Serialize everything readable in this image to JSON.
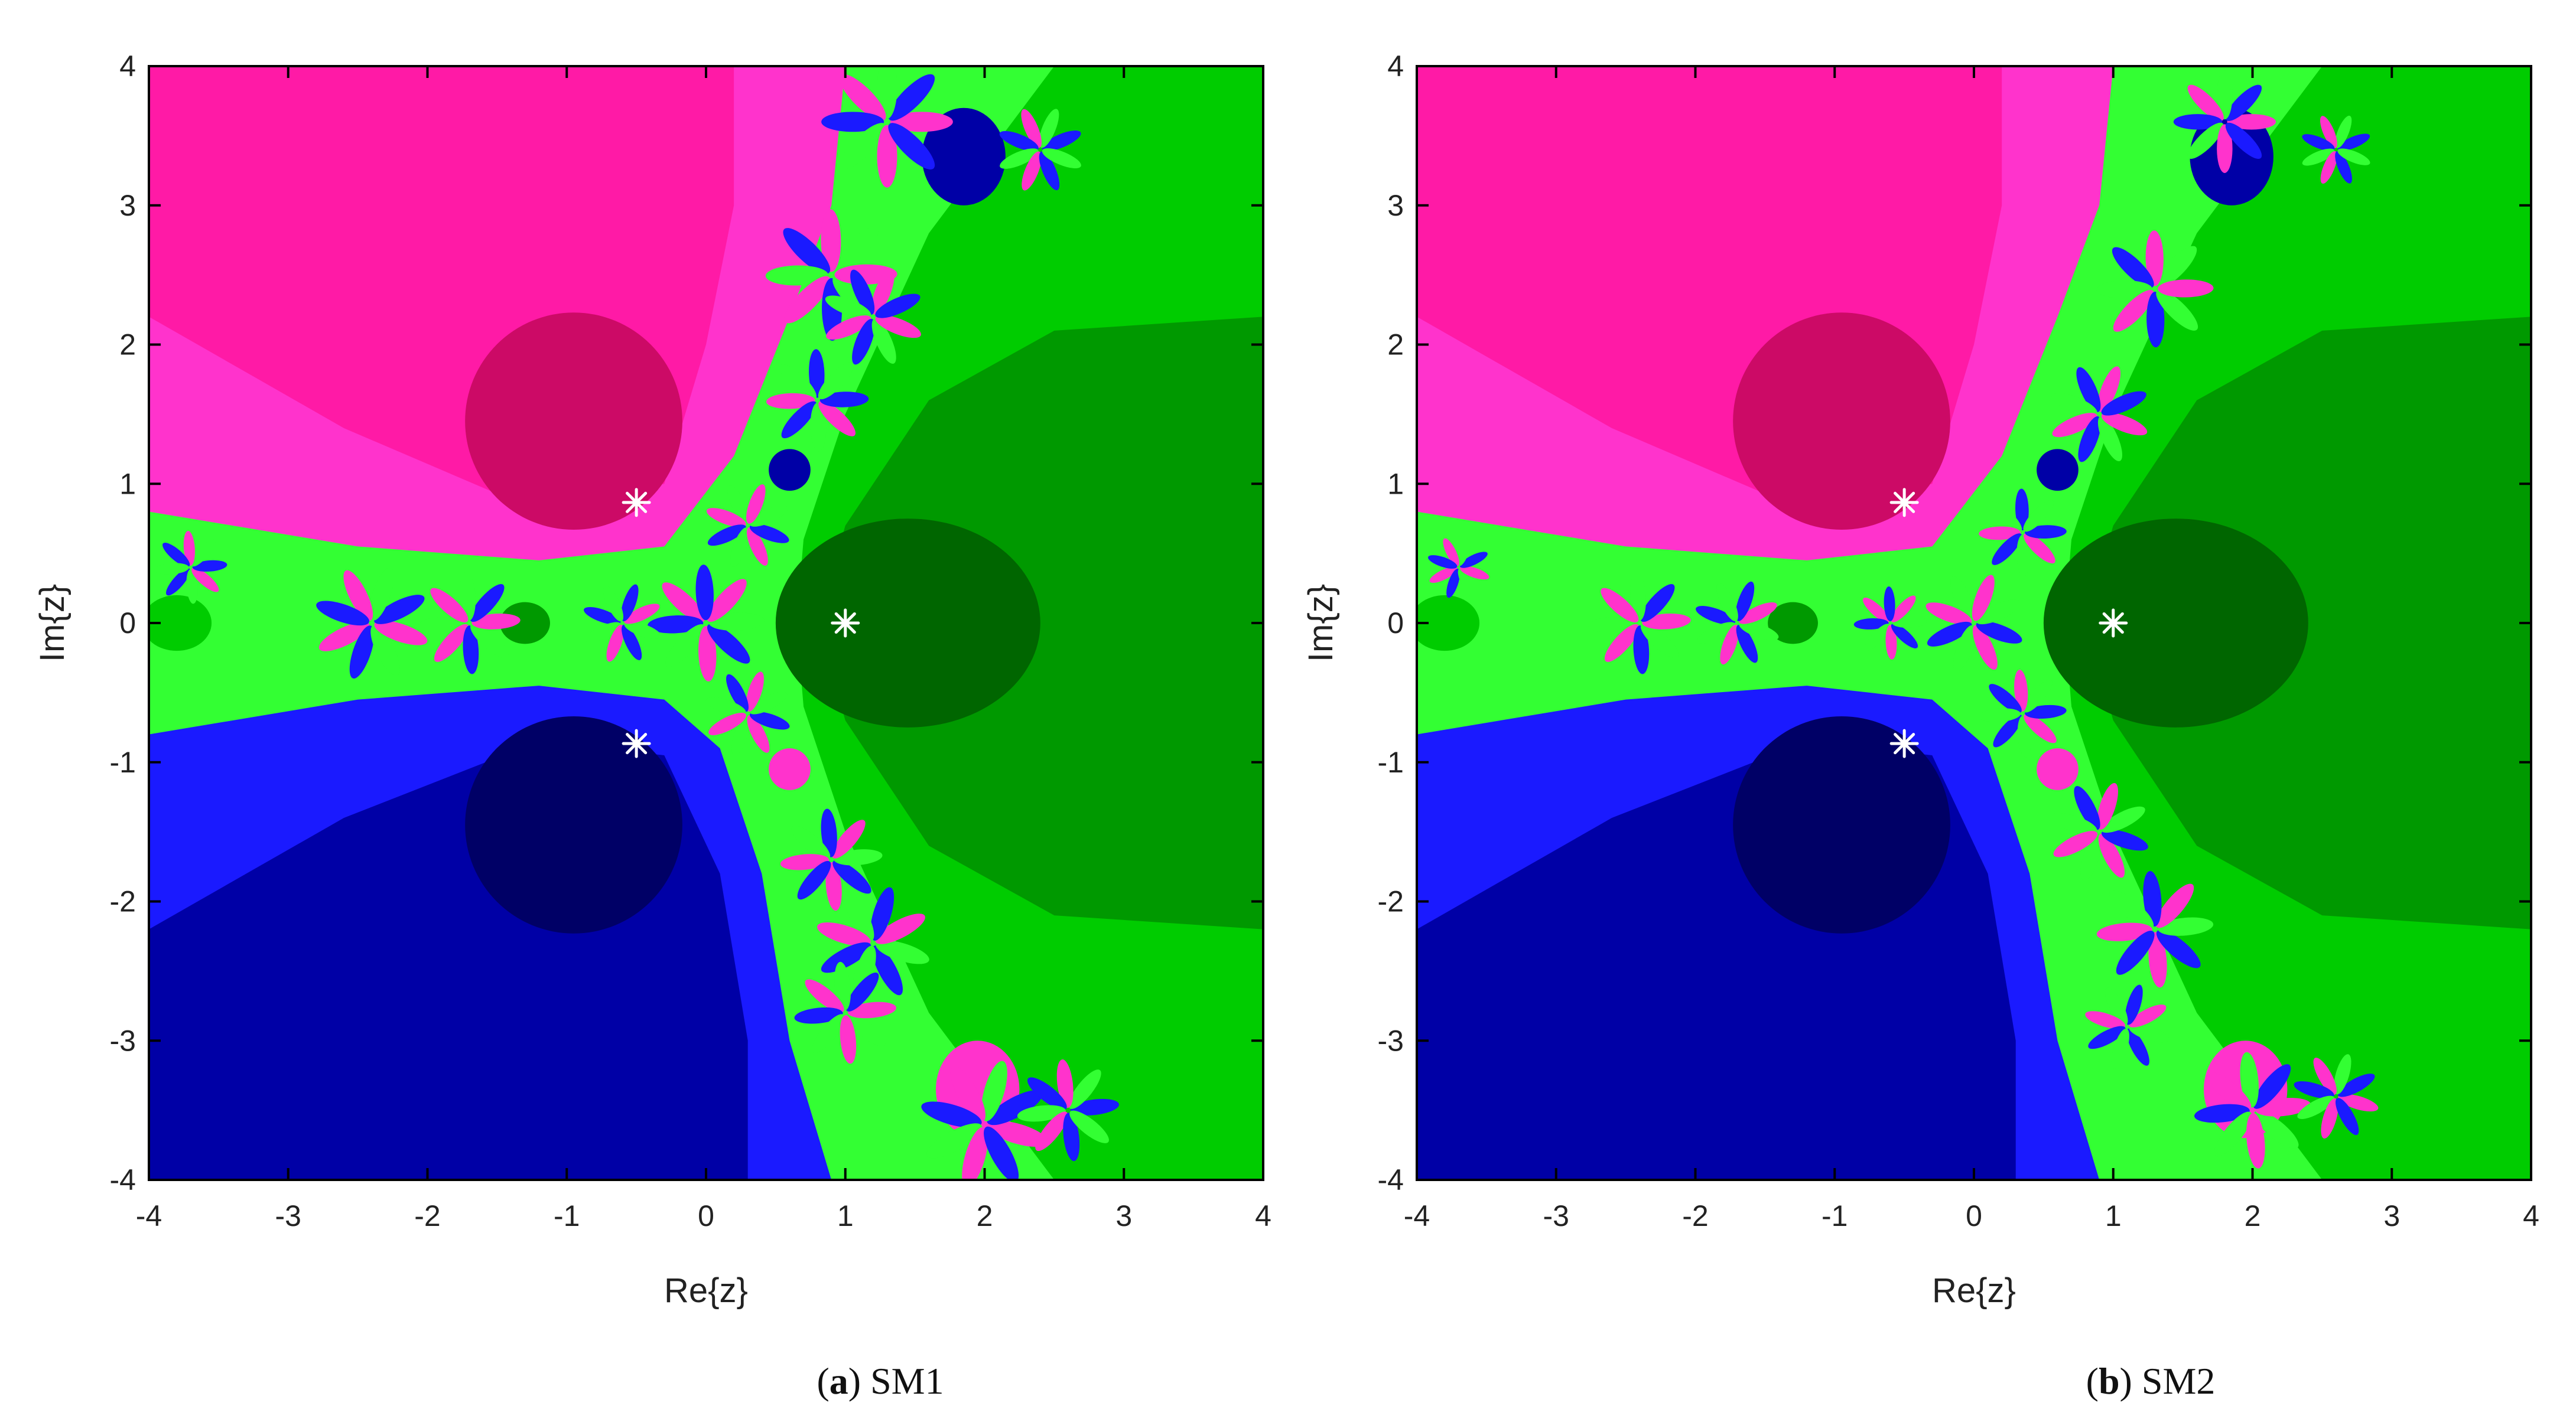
{
  "colors": {
    "magenta_bright": "#ff33cc",
    "magenta_main": "#ff1aa6",
    "magenta_dark": "#cc0a66",
    "blue_bright": "#1a1aff",
    "blue_main": "#0000a6",
    "blue_dark": "#000066",
    "green_bright": "#33ff33",
    "green_main": "#00cc00",
    "green_mid": "#009900",
    "green_dark": "#006600",
    "root_marker": "#ffffff"
  },
  "chart_data": [
    {
      "type": "heatmap",
      "panel": "a",
      "caption_letter": "a",
      "caption_text": "SM1",
      "xlabel": "Re{z}",
      "ylabel": "Im{z}",
      "xlim": [
        -4,
        4
      ],
      "ylim": [
        -4,
        4
      ],
      "x_ticks": [
        "-4",
        "-3",
        "-2",
        "-1",
        "0",
        "1",
        "2",
        "3",
        "4"
      ],
      "y_ticks": [
        "4",
        "3",
        "2",
        "1",
        "0",
        "-1",
        "-2",
        "-3",
        "-4"
      ],
      "roots": [
        {
          "x": 1,
          "y": 0
        },
        {
          "x": -0.5,
          "y": 0.866
        },
        {
          "x": -0.5,
          "y": -0.866
        }
      ],
      "grid": false
    },
    {
      "type": "heatmap",
      "panel": "b",
      "caption_letter": "b",
      "caption_text": "SM2",
      "xlabel": "Re{z}",
      "ylabel": "Im{z}",
      "xlim": [
        -4,
        4
      ],
      "ylim": [
        -4,
        4
      ],
      "x_ticks": [
        "-4",
        "-3",
        "-2",
        "-1",
        "0",
        "1",
        "2",
        "3",
        "4"
      ],
      "y_ticks": [
        "4",
        "3",
        "2",
        "1",
        "0",
        "-1",
        "-2",
        "-3",
        "-4"
      ],
      "roots": [
        {
          "x": 1,
          "y": 0
        },
        {
          "x": -0.5,
          "y": 0.866
        },
        {
          "x": -0.5,
          "y": -0.866
        }
      ],
      "grid": false
    }
  ]
}
